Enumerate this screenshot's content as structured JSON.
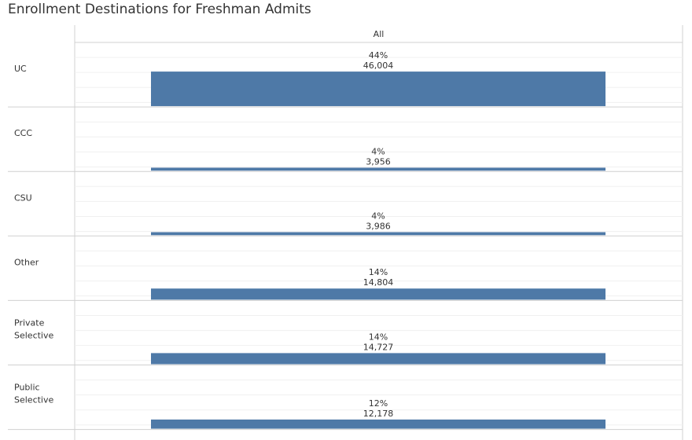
{
  "title": "Enrollment Destinations for Freshman Admits",
  "chart_data": {
    "type": "bar",
    "orientation": "horizontal",
    "column_header": "All",
    "categories": [
      [
        "UC"
      ],
      [
        "CCC"
      ],
      [
        "CSU"
      ],
      [
        "Other"
      ],
      [
        "Private",
        "Selective"
      ],
      [
        "Public",
        "Selective"
      ]
    ],
    "series": [
      {
        "values": [
          46004,
          3956,
          3986,
          14804,
          14727,
          12178
        ],
        "percent_labels": [
          "44%",
          "4%",
          "4%",
          "14%",
          "14%",
          "12%"
        ],
        "value_labels": [
          "46,004",
          "3,956",
          "3,986",
          "14,804",
          "14,727",
          "12,178"
        ]
      }
    ],
    "bar_color": "#4e79a7",
    "grid": true
  }
}
